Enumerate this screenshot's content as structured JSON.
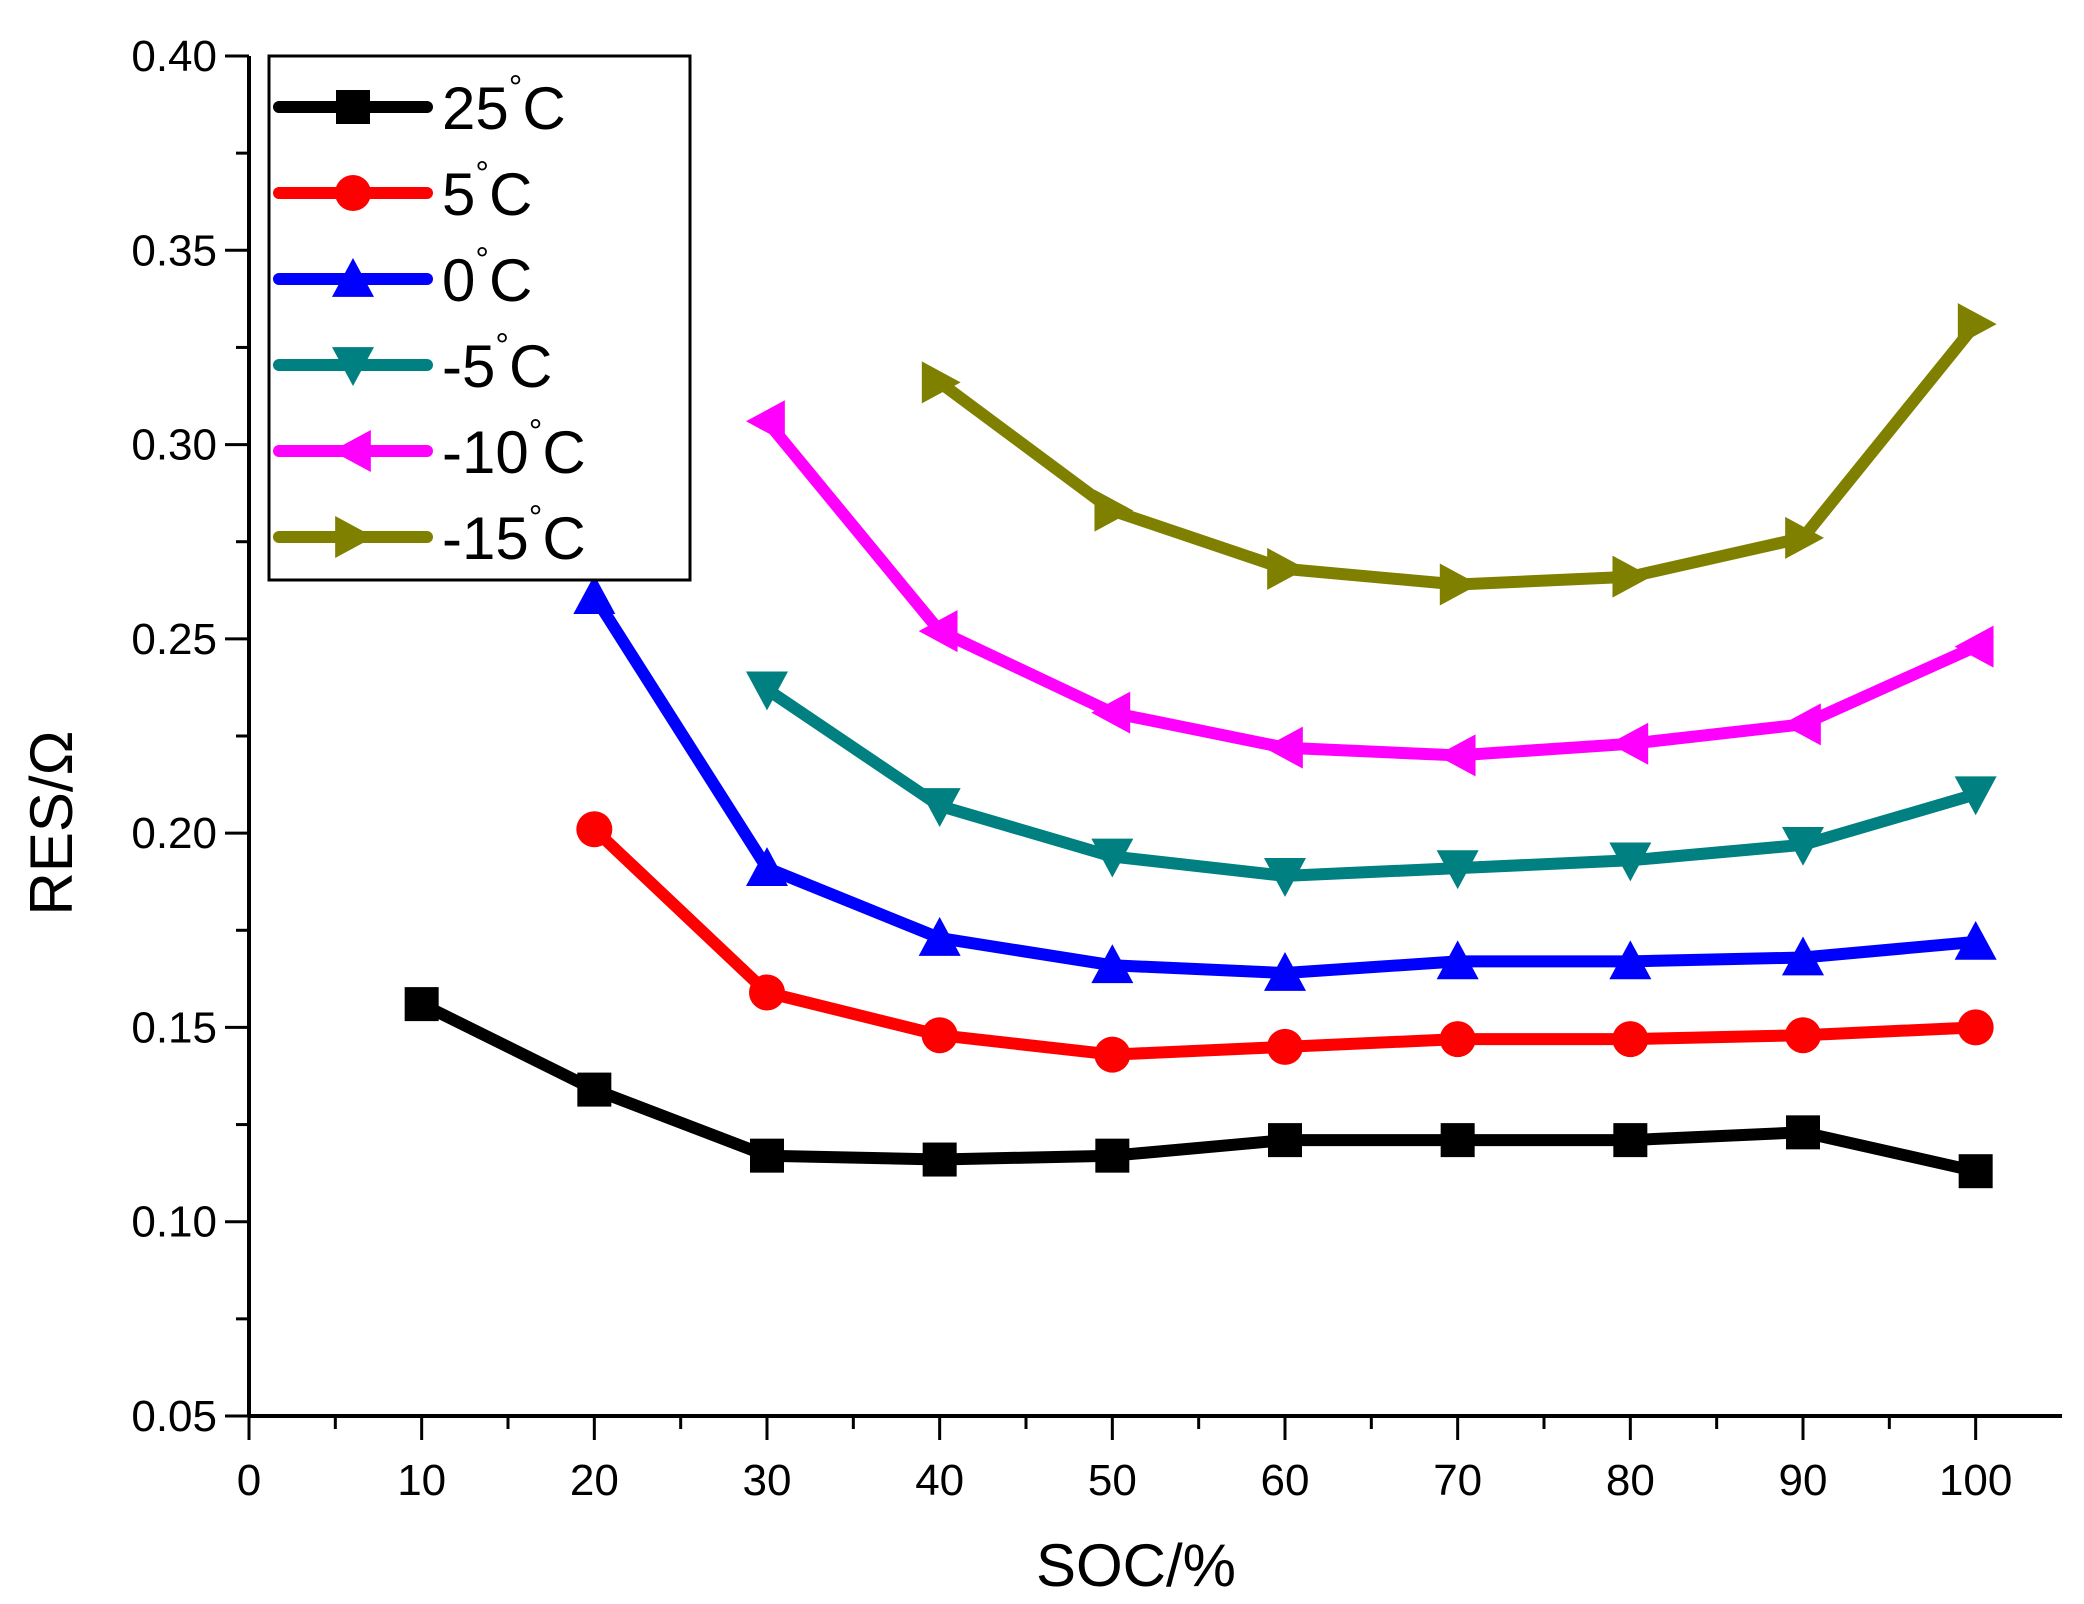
{
  "chart_data": {
    "type": "line",
    "xlabel": "SOC/%",
    "ylabel": "RES/Ω",
    "xlim": [
      0,
      105
    ],
    "ylim": [
      0.05,
      0.4
    ],
    "x_ticks": [
      0,
      10,
      20,
      30,
      40,
      50,
      60,
      70,
      80,
      90,
      100
    ],
    "x_tick_labels": [
      "0",
      "10",
      "20",
      "30",
      "40",
      "50",
      "60",
      "70",
      "80",
      "90",
      "100"
    ],
    "y_ticks": [
      0.05,
      0.1,
      0.15,
      0.2,
      0.25,
      0.3,
      0.35,
      0.4
    ],
    "y_tick_labels": [
      "0.05",
      "0.10",
      "0.15",
      "0.20",
      "0.25",
      "0.30",
      "0.35",
      "0.40"
    ],
    "grid": false,
    "legend_position": "top-left",
    "series": [
      {
        "name": "25°C",
        "label_main": "25",
        "label_unit": "C",
        "color": "#000000",
        "marker": "square",
        "x": [
          10,
          20,
          30,
          40,
          50,
          60,
          70,
          80,
          90,
          100
        ],
        "values": [
          0.156,
          0.134,
          0.117,
          0.116,
          0.117,
          0.121,
          0.121,
          0.121,
          0.123,
          0.113
        ]
      },
      {
        "name": "5°C",
        "label_main": "5",
        "label_unit": "C",
        "color": "#ff0000",
        "marker": "circle",
        "x": [
          20,
          30,
          40,
          50,
          60,
          70,
          80,
          90,
          100
        ],
        "values": [
          0.201,
          0.159,
          0.148,
          0.143,
          0.145,
          0.147,
          0.147,
          0.148,
          0.15
        ]
      },
      {
        "name": "0°C",
        "label_main": "0",
        "label_unit": "C",
        "color": "#0000ff",
        "marker": "triangle-up",
        "x": [
          20,
          30,
          40,
          50,
          60,
          70,
          80,
          90,
          100
        ],
        "values": [
          0.261,
          0.191,
          0.173,
          0.166,
          0.164,
          0.167,
          0.167,
          0.168,
          0.172
        ]
      },
      {
        "name": "-5°C",
        "label_main": "-5",
        "label_unit": "C",
        "color": "#008080",
        "marker": "triangle-down",
        "x": [
          30,
          40,
          50,
          60,
          70,
          80,
          90,
          100
        ],
        "values": [
          0.237,
          0.207,
          0.194,
          0.189,
          0.191,
          0.193,
          0.197,
          0.21
        ]
      },
      {
        "name": "-10°C",
        "label_main": "-10",
        "label_unit": "C",
        "color": "#ff00ff",
        "marker": "triangle-left",
        "x": [
          30,
          40,
          50,
          60,
          70,
          80,
          90,
          100
        ],
        "values": [
          0.306,
          0.252,
          0.231,
          0.222,
          0.22,
          0.223,
          0.228,
          0.248
        ]
      },
      {
        "name": "-15°C",
        "label_main": "-15",
        "label_unit": "C",
        "color": "#808000",
        "marker": "triangle-right",
        "x": [
          40,
          50,
          60,
          70,
          80,
          90,
          100
        ],
        "values": [
          0.316,
          0.283,
          0.268,
          0.264,
          0.266,
          0.276,
          0.331
        ]
      }
    ]
  }
}
